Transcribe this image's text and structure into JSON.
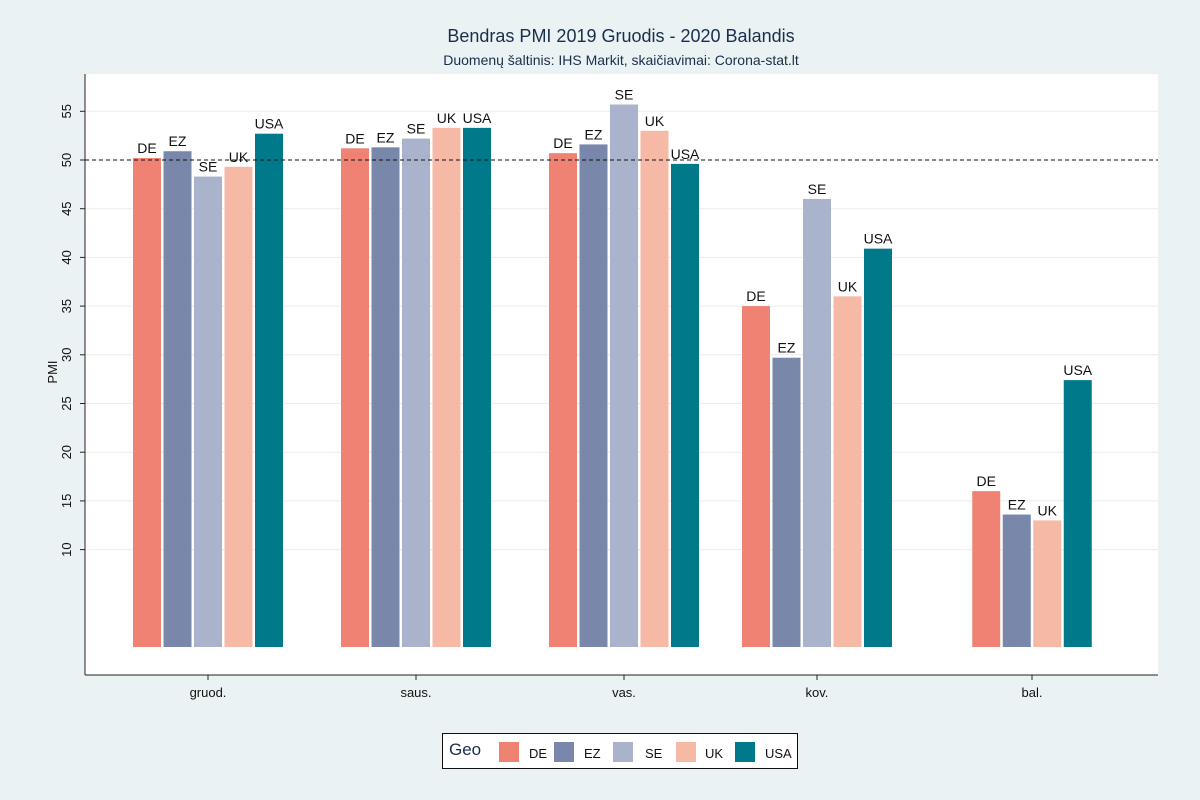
{
  "chart_data": {
    "type": "bar",
    "title": "Bendras PMI 2019 Gruodis - 2020 Balandis",
    "subtitle": "Duomenų šaltinis: IHS Markit, skaičiavimai: Corona-stat.lt",
    "xlabel": "",
    "ylabel": "PMI",
    "categories": [
      "gruod.",
      "saus.",
      "vas.",
      "kov.",
      "bal."
    ],
    "yticks": [
      10,
      15,
      20,
      25,
      30,
      35,
      40,
      45,
      50,
      55
    ],
    "ylim": [
      0,
      58
    ],
    "reference_line": 50,
    "grid": true,
    "legend_title": "Geo",
    "legend_position": "bottom",
    "series": [
      {
        "name": "DE",
        "color": "#ef8272",
        "values": [
          50.2,
          51.2,
          50.7,
          35.0,
          16.0
        ]
      },
      {
        "name": "EZ",
        "color": "#7887aa",
        "values": [
          50.9,
          51.3,
          51.6,
          29.7,
          13.6
        ]
      },
      {
        "name": "SE",
        "color": "#a9b3cb",
        "values": [
          48.3,
          52.2,
          55.7,
          46.0,
          null
        ]
      },
      {
        "name": "UK",
        "color": "#f5b9a6",
        "values": [
          49.3,
          53.3,
          53.0,
          36.0,
          13.0
        ]
      },
      {
        "name": "USA",
        "color": "#00798a",
        "values": [
          52.7,
          53.3,
          49.6,
          40.9,
          27.4
        ]
      }
    ]
  }
}
